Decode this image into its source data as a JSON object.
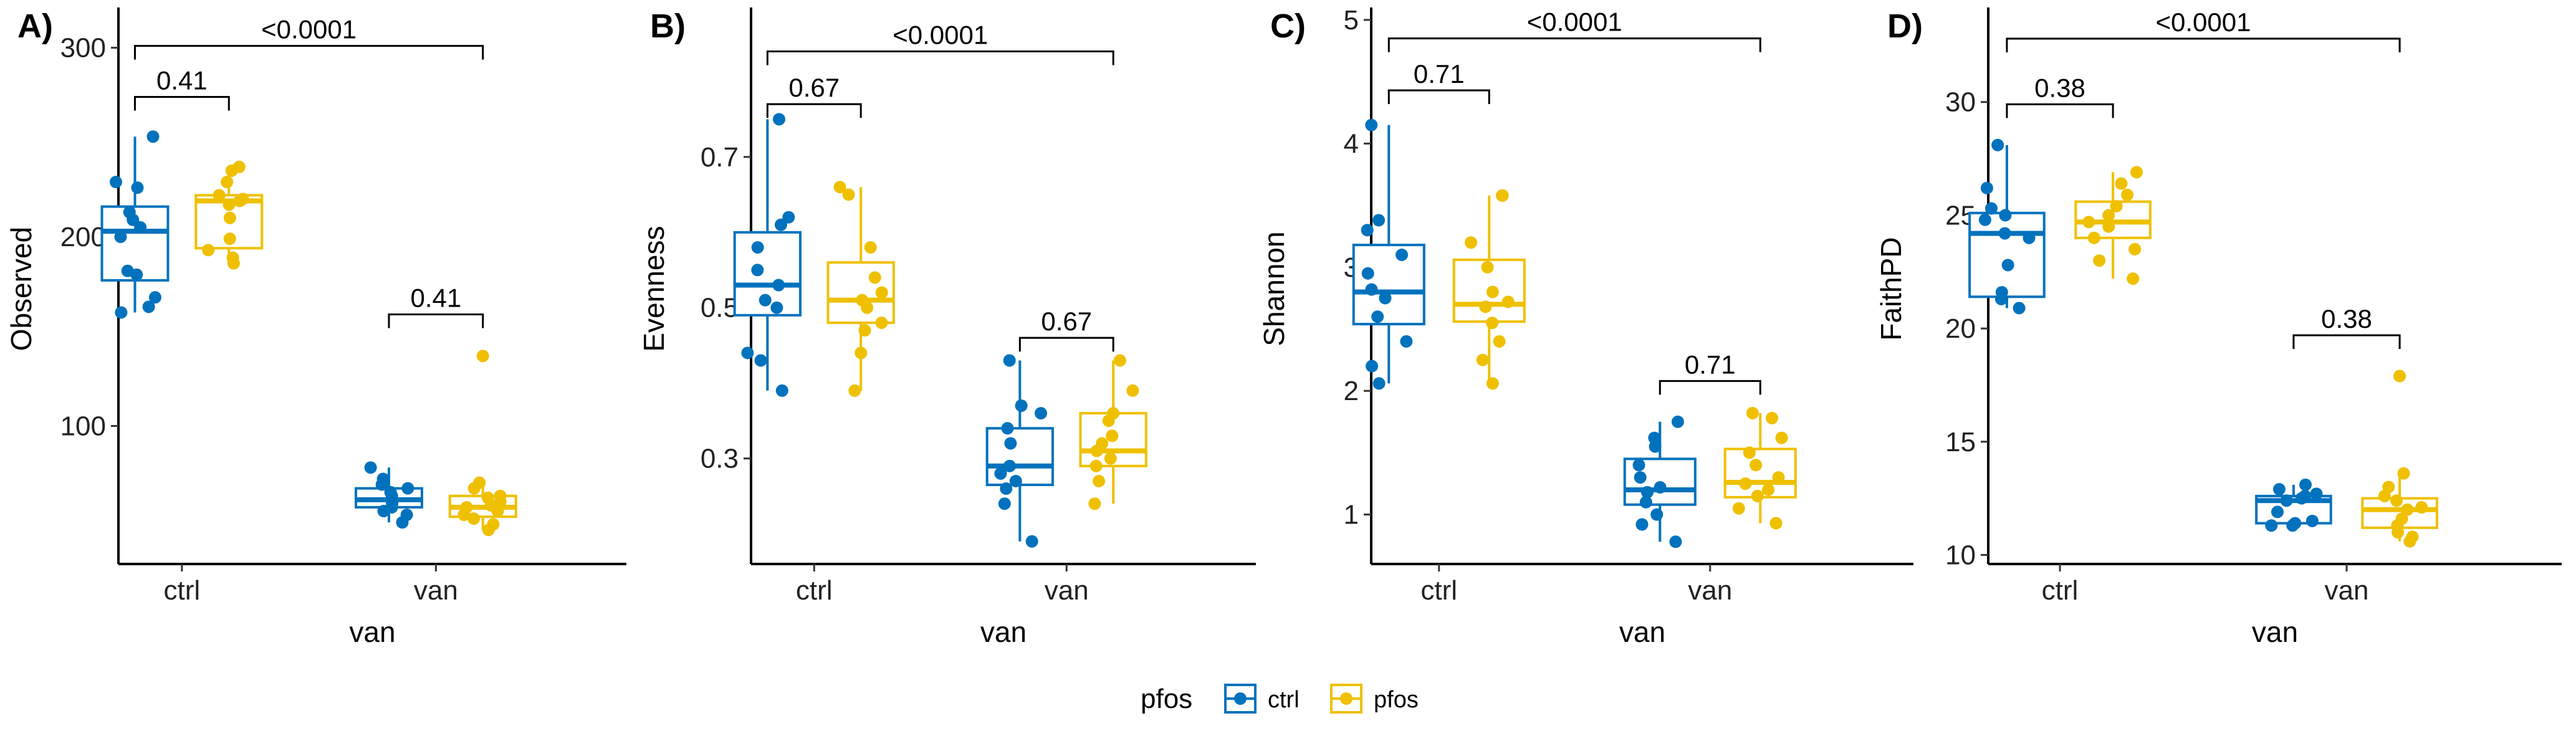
{
  "legend": {
    "title": "pfos",
    "items": [
      {
        "label": "ctrl",
        "color": "#0072BD"
      },
      {
        "label": "pfos",
        "color": "#EFC000"
      }
    ]
  },
  "chart_data": [
    {
      "type": "box",
      "panel": "A)",
      "xlabel": "van",
      "ylabel": "Observed",
      "ylim": [
        27,
        318
      ],
      "yticks": [
        100,
        200,
        300
      ],
      "categories": [
        "ctrl",
        "van"
      ],
      "groups": [
        "ctrl",
        "pfos"
      ],
      "boxes": [
        {
          "x": "ctrl",
          "group": "ctrl",
          "min": 160,
          "q1": 177,
          "median": 203,
          "q3": 216,
          "max": 253
        },
        {
          "x": "ctrl",
          "group": "pfos",
          "min": 186,
          "q1": 194,
          "median": 219,
          "q3": 222,
          "max": 237
        },
        {
          "x": "van",
          "group": "ctrl",
          "min": 49,
          "q1": 57,
          "median": 61,
          "q3": 67,
          "max": 78
        },
        {
          "x": "van",
          "group": "pfos",
          "min": 45,
          "q1": 52,
          "median": 57,
          "q3": 63,
          "max": 70
        }
      ],
      "points": [
        {
          "x": "ctrl",
          "group": "ctrl",
          "values": [
            253,
            229,
            226,
            213,
            209,
            205,
            200,
            182,
            180,
            168,
            163,
            160
          ]
        },
        {
          "x": "ctrl",
          "group": "pfos",
          "values": [
            237,
            235,
            229,
            222,
            220,
            219,
            217,
            210,
            199,
            193,
            189,
            186
          ]
        },
        {
          "x": "van",
          "group": "ctrl",
          "values": [
            78,
            72,
            69,
            67,
            65,
            63,
            61,
            59,
            57,
            55,
            53,
            49
          ]
        },
        {
          "x": "van",
          "group": "pfos",
          "values": [
            70,
            67,
            63,
            62,
            60,
            58,
            57,
            55,
            53,
            51,
            48,
            45
          ]
        }
      ],
      "outliers": [
        {
          "x": "van",
          "group": "pfos",
          "value": 137
        }
      ],
      "comparisons": [
        {
          "from": [
            "ctrl",
            "ctrl"
          ],
          "to": [
            "van",
            "pfos"
          ],
          "label": "<0.0001",
          "y": 301
        },
        {
          "from": [
            "ctrl",
            "ctrl"
          ],
          "to": [
            "ctrl",
            "pfos"
          ],
          "label": "0.41",
          "y": 274
        },
        {
          "from": [
            "van",
            "ctrl"
          ],
          "to": [
            "van",
            "pfos"
          ],
          "label": "0.41",
          "y": 159
        }
      ]
    },
    {
      "type": "box",
      "panel": "B)",
      "xlabel": "van",
      "ylabel": "Evenness",
      "ylim": [
        0.16,
        0.89
      ],
      "yticks": [
        0.3,
        0.5,
        0.7
      ],
      "tick_format": "1",
      "categories": [
        "ctrl",
        "van"
      ],
      "groups": [
        "ctrl",
        "pfos"
      ],
      "boxes": [
        {
          "x": "ctrl",
          "group": "ctrl",
          "min": 0.39,
          "q1": 0.49,
          "median": 0.53,
          "q3": 0.6,
          "max": 0.75
        },
        {
          "x": "ctrl",
          "group": "pfos",
          "min": 0.39,
          "q1": 0.48,
          "median": 0.51,
          "q3": 0.56,
          "max": 0.66
        },
        {
          "x": "van",
          "group": "ctrl",
          "min": 0.19,
          "q1": 0.265,
          "median": 0.29,
          "q3": 0.34,
          "max": 0.43
        },
        {
          "x": "van",
          "group": "pfos",
          "min": 0.24,
          "q1": 0.29,
          "median": 0.31,
          "q3": 0.36,
          "max": 0.43
        }
      ],
      "points": [
        {
          "x": "ctrl",
          "group": "ctrl",
          "values": [
            0.75,
            0.62,
            0.61,
            0.58,
            0.55,
            0.53,
            0.51,
            0.5,
            0.44,
            0.43,
            0.39
          ]
        },
        {
          "x": "ctrl",
          "group": "pfos",
          "values": [
            0.66,
            0.65,
            0.58,
            0.54,
            0.52,
            0.51,
            0.5,
            0.48,
            0.47,
            0.44,
            0.39
          ]
        },
        {
          "x": "van",
          "group": "ctrl",
          "values": [
            0.43,
            0.37,
            0.36,
            0.34,
            0.32,
            0.29,
            0.28,
            0.27,
            0.26,
            0.24,
            0.19
          ]
        },
        {
          "x": "van",
          "group": "pfos",
          "values": [
            0.43,
            0.39,
            0.36,
            0.35,
            0.33,
            0.32,
            0.31,
            0.3,
            0.29,
            0.27,
            0.24
          ]
        }
      ],
      "comparisons": [
        {
          "from": [
            "ctrl",
            "ctrl"
          ],
          "to": [
            "van",
            "pfos"
          ],
          "label": "<0.0001",
          "y": 0.84
        },
        {
          "from": [
            "ctrl",
            "ctrl"
          ],
          "to": [
            "ctrl",
            "pfos"
          ],
          "label": "0.67",
          "y": 0.77
        },
        {
          "from": [
            "van",
            "ctrl"
          ],
          "to": [
            "van",
            "pfos"
          ],
          "label": "0.67",
          "y": 0.46
        }
      ]
    },
    {
      "type": "box",
      "panel": "C)",
      "xlabel": "van",
      "ylabel": "Shannon",
      "ylim": [
        0.6,
        5.05
      ],
      "yticks": [
        1,
        2,
        3,
        4,
        5
      ],
      "categories": [
        "ctrl",
        "van"
      ],
      "groups": [
        "ctrl",
        "pfos"
      ],
      "boxes": [
        {
          "x": "ctrl",
          "group": "ctrl",
          "min": 2.06,
          "q1": 2.54,
          "median": 2.8,
          "q3": 3.18,
          "max": 4.15
        },
        {
          "x": "ctrl",
          "group": "pfos",
          "min": 2.06,
          "q1": 2.56,
          "median": 2.7,
          "q3": 3.06,
          "max": 3.58
        },
        {
          "x": "van",
          "group": "ctrl",
          "min": 0.78,
          "q1": 1.08,
          "median": 1.2,
          "q3": 1.45,
          "max": 1.75
        },
        {
          "x": "van",
          "group": "pfos",
          "min": 0.93,
          "q1": 1.14,
          "median": 1.26,
          "q3": 1.53,
          "max": 1.82
        }
      ],
      "points": [
        {
          "x": "ctrl",
          "group": "ctrl",
          "values": [
            4.15,
            3.38,
            3.3,
            3.1,
            2.95,
            2.82,
            2.75,
            2.6,
            2.4,
            2.2,
            2.06
          ]
        },
        {
          "x": "ctrl",
          "group": "pfos",
          "values": [
            3.58,
            3.58,
            3.2,
            3.0,
            2.8,
            2.72,
            2.68,
            2.55,
            2.4,
            2.25,
            2.06
          ]
        },
        {
          "x": "van",
          "group": "ctrl",
          "values": [
            1.75,
            1.62,
            1.55,
            1.4,
            1.3,
            1.22,
            1.18,
            1.1,
            1.0,
            0.92,
            0.78
          ]
        },
        {
          "x": "van",
          "group": "pfos",
          "values": [
            1.82,
            1.78,
            1.62,
            1.5,
            1.4,
            1.3,
            1.25,
            1.2,
            1.15,
            1.05,
            0.93
          ]
        }
      ],
      "comparisons": [
        {
          "from": [
            "ctrl",
            "ctrl"
          ],
          "to": [
            "van",
            "pfos"
          ],
          "label": "<0.0001",
          "y": 4.85
        },
        {
          "from": [
            "ctrl",
            "ctrl"
          ],
          "to": [
            "ctrl",
            "pfos"
          ],
          "label": "0.71",
          "y": 4.43
        },
        {
          "from": [
            "van",
            "ctrl"
          ],
          "to": [
            "van",
            "pfos"
          ],
          "label": "0.71",
          "y": 2.08
        }
      ]
    },
    {
      "type": "box",
      "panel": "D)",
      "xlabel": "van",
      "ylabel": "FaithPD",
      "ylim": [
        9.6,
        33.9
      ],
      "yticks": [
        10,
        15,
        20,
        25,
        30
      ],
      "categories": [
        "ctrl",
        "van"
      ],
      "groups": [
        "ctrl",
        "pfos"
      ],
      "boxes": [
        {
          "x": "ctrl",
          "group": "ctrl",
          "min": 20.9,
          "q1": 21.4,
          "median": 24.2,
          "q3": 25.1,
          "max": 28.1
        },
        {
          "x": "ctrl",
          "group": "pfos",
          "min": 22.2,
          "q1": 24.0,
          "median": 24.7,
          "q3": 25.6,
          "max": 26.9
        },
        {
          "x": "van",
          "group": "ctrl",
          "min": 11.3,
          "q1": 11.4,
          "median": 12.4,
          "q3": 12.6,
          "max": 13.1
        },
        {
          "x": "van",
          "group": "pfos",
          "min": 10.6,
          "q1": 11.2,
          "median": 12.0,
          "q3": 12.5,
          "max": 13.6
        }
      ],
      "points": [
        {
          "x": "ctrl",
          "group": "ctrl",
          "values": [
            28.1,
            26.2,
            25.3,
            25.0,
            24.8,
            24.2,
            24.0,
            22.8,
            21.6,
            21.3,
            20.9
          ]
        },
        {
          "x": "ctrl",
          "group": "pfos",
          "values": [
            26.9,
            26.4,
            25.9,
            25.4,
            25.0,
            24.7,
            24.5,
            24.0,
            23.5,
            23.0,
            22.2
          ]
        },
        {
          "x": "van",
          "group": "ctrl",
          "values": [
            13.1,
            12.9,
            12.7,
            12.6,
            12.5,
            12.4,
            11.9,
            11.5,
            11.4,
            11.3,
            11.3
          ]
        },
        {
          "x": "van",
          "group": "pfos",
          "values": [
            13.6,
            13.0,
            12.6,
            12.4,
            12.1,
            12.0,
            11.6,
            11.3,
            11.0,
            10.8,
            10.6
          ]
        }
      ],
      "outliers": [
        {
          "x": "van",
          "group": "pfos",
          "value": 17.9
        }
      ],
      "comparisons": [
        {
          "from": [
            "ctrl",
            "ctrl"
          ],
          "to": [
            "van",
            "pfos"
          ],
          "label": "<0.0001",
          "y": 32.8
        },
        {
          "from": [
            "ctrl",
            "ctrl"
          ],
          "to": [
            "ctrl",
            "pfos"
          ],
          "label": "0.38",
          "y": 29.9
        },
        {
          "from": [
            "van",
            "ctrl"
          ],
          "to": [
            "van",
            "pfos"
          ],
          "label": "0.38",
          "y": 19.7
        }
      ]
    }
  ]
}
